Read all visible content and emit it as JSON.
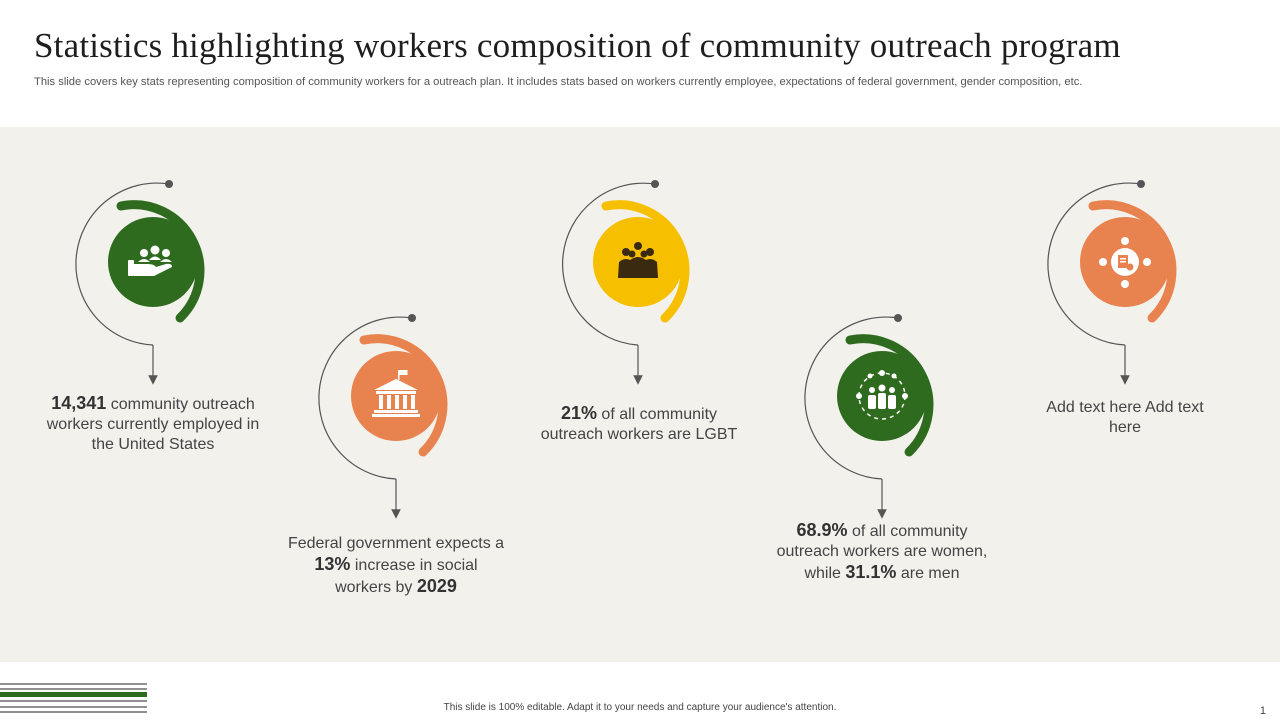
{
  "header": {
    "title": "Statistics highlighting workers composition of community outreach program",
    "subtitle": "This slide covers key stats representing composition of community workers for a outreach plan. It includes stats based on workers currently employee, expectations of federal government, gender composition, etc."
  },
  "colors": {
    "green": "#2e6b1f",
    "orange": "#e8834f",
    "yellow": "#f6c000",
    "panel": "#f3f1ec"
  },
  "stats": [
    {
      "icon": "hand-people-icon",
      "color": "green",
      "parts": [
        {
          "t": "14,341",
          "b": true
        },
        {
          "t": " community outreach workers currently employed in the United States"
        }
      ]
    },
    {
      "icon": "government-building-icon",
      "color": "orange",
      "parts": [
        {
          "t": "Federal government expects a "
        },
        {
          "t": "13%",
          "b": true
        },
        {
          "t": " increase in social workers by "
        },
        {
          "t": "2029",
          "b": true
        }
      ]
    },
    {
      "icon": "group-people-icon",
      "color": "yellow",
      "parts": [
        {
          "t": "21%",
          "b": true
        },
        {
          "t": " of all community outreach workers are LGBT"
        }
      ]
    },
    {
      "icon": "team-network-icon",
      "color": "green",
      "parts": [
        {
          "t": "68.9%",
          "b": true
        },
        {
          "t": " of all community outreach workers are women, while "
        },
        {
          "t": "31.1%",
          "b": true
        },
        {
          "t": " are men"
        }
      ]
    },
    {
      "icon": "meeting-table-icon",
      "color": "orange",
      "parts": [
        {
          "t": "Add text here Add text here"
        }
      ]
    }
  ],
  "footer": {
    "note": "This slide is 100% editable. Adapt it to your needs and capture your audience's attention.",
    "page_number": "1"
  }
}
